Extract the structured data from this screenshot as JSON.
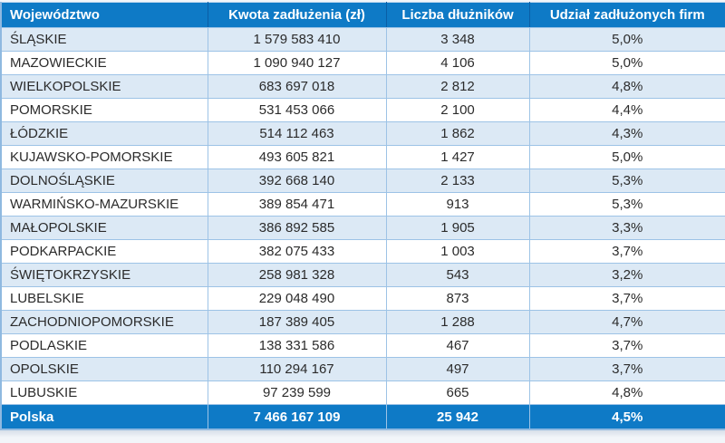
{
  "chart_data": {
    "type": "table",
    "columns": [
      "Województwo",
      "Kwota zadłużenia (zł)",
      "Liczba dłużników",
      "Udział zadłużonych firm"
    ],
    "rows": [
      [
        "ŚLĄSKIE",
        "1 579 583 410",
        "3 348",
        "5,0%"
      ],
      [
        "MAZOWIECKIE",
        "1 090 940 127",
        "4 106",
        "5,0%"
      ],
      [
        "WIELKOPOLSKIE",
        "683 697 018",
        "2 812",
        "4,8%"
      ],
      [
        "POMORSKIE",
        "531 453 066",
        "2 100",
        "4,4%"
      ],
      [
        "ŁÓDZKIE",
        "514 112 463",
        "1 862",
        "4,3%"
      ],
      [
        "KUJAWSKO-POMORSKIE",
        "493 605 821",
        "1 427",
        "5,0%"
      ],
      [
        "DOLNOŚLĄSKIE",
        "392 668 140",
        "2 133",
        "5,3%"
      ],
      [
        "WARMIŃSKO-MAZURSKIE",
        "389 854 471",
        "913",
        "5,3%"
      ],
      [
        "MAŁOPOLSKIE",
        "386 892 585",
        "1 905",
        "3,3%"
      ],
      [
        "PODKARPACKIE",
        "382 075 433",
        "1 003",
        "3,7%"
      ],
      [
        "ŚWIĘTOKRZYSKIE",
        "258 981 328",
        "543",
        "3,2%"
      ],
      [
        "LUBELSKIE",
        "229 048 490",
        "873",
        "3,7%"
      ],
      [
        "ZACHODNIOPOMORSKIE",
        "187 389 405",
        "1 288",
        "4,7%"
      ],
      [
        "PODLASKIE",
        "138 331 586",
        "467",
        "3,7%"
      ],
      [
        "OPOLSKIE",
        "110 294 167",
        "497",
        "3,7%"
      ],
      [
        "LUBUSKIE",
        "97 239 599",
        "665",
        "4,8%"
      ]
    ],
    "footer": [
      "Polska",
      "7 466 167 109",
      "25 942",
      "4,5%"
    ]
  },
  "colors": {
    "header_bg": "#0e7ac6",
    "header_text": "#ffffff",
    "stripe_row_bg": "#dce9f5",
    "cell_border": "#9dc3e6",
    "header_divider": "#0a5ea6",
    "data_text": "#2b2b2b"
  }
}
